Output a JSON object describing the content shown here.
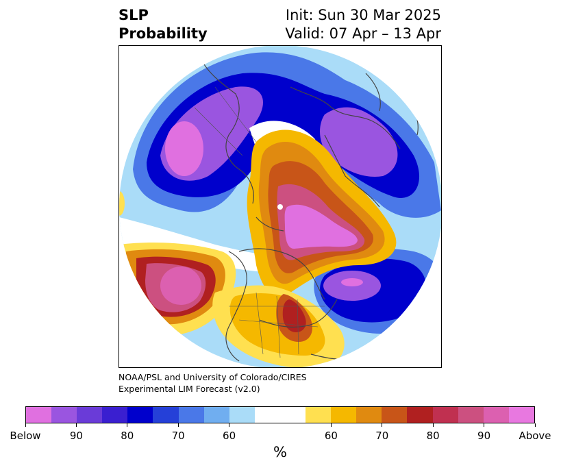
{
  "header": {
    "variable": "SLP",
    "metric": "Probability",
    "init": "Init: Sun 30 Mar 2025",
    "valid": "Valid: 07 Apr – 13 Apr"
  },
  "credit": {
    "line1": "NOAA/PSL and University of Colorado/CIRES",
    "line2": "Experimental LIM Forecast (v2.0)"
  },
  "colorbar": {
    "unit": "%",
    "colors": [
      "#e070e0",
      "#9a55e0",
      "#6a3bd8",
      "#3a1fd0",
      "#0000cc",
      "#2540d8",
      "#4a78e8",
      "#70aef0",
      "#aadcf8",
      "#ffffff",
      "#ffffff",
      "#ffe050",
      "#f5b800",
      "#e08a10",
      "#c85518",
      "#b02020",
      "#c03050",
      "#cc5080",
      "#dc60b0",
      "#e878e0"
    ],
    "tick_labels": [
      "Below",
      "90",
      "80",
      "70",
      "60",
      "60",
      "70",
      "80",
      "90",
      "Above"
    ]
  },
  "map": {
    "projection": "north-polar-stereographic",
    "field": "sea-level-pressure-probability",
    "colors": {
      "below_strong": "#e070e0",
      "below_high": "#9a55e0",
      "below_mid": "#3a1fd0",
      "below_core": "#0000cc",
      "below_low": "#4a78e8",
      "below_weak": "#aadcf8",
      "above_weak": "#ffe050",
      "above_low": "#f5b800",
      "above_mid": "#e08a10",
      "above_high": "#c85518",
      "above_core": "#b02020",
      "above_strong": "#cc5080",
      "above_max": "#e070e0",
      "coast": "#444444"
    }
  }
}
